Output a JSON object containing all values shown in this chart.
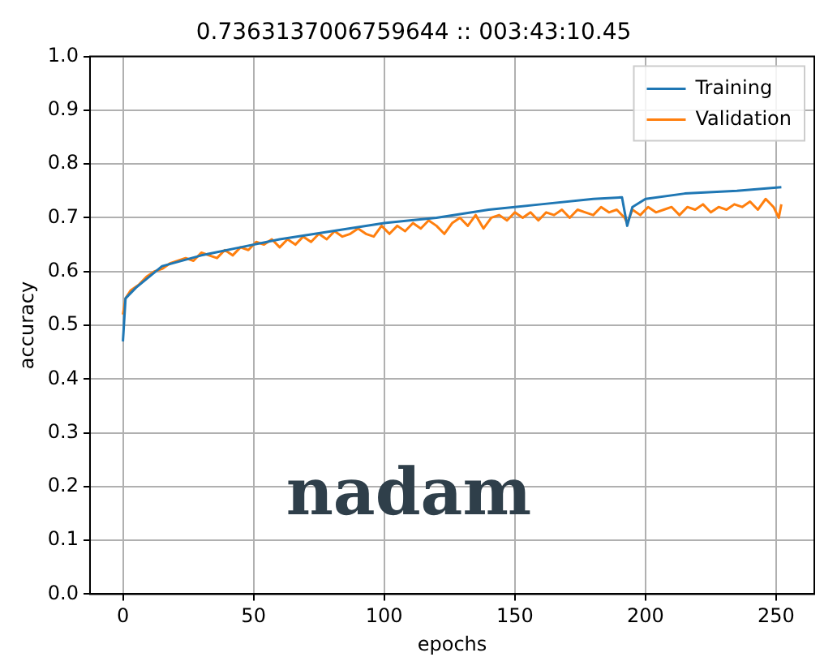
{
  "chart_data": {
    "type": "line",
    "title": "0.7363137006759644 :: 003:43:10.45",
    "xlabel": "epochs",
    "ylabel": "accuracy",
    "xlim": [
      -12.6,
      264.6
    ],
    "xticks": [
      0,
      50,
      100,
      150,
      200,
      250
    ],
    "ylim": [
      0,
      1
    ],
    "yticks": [
      {
        "value": 0,
        "label": "0.0"
      },
      0.1,
      0.2,
      0.3,
      0.4,
      0.5,
      0.6,
      0.7,
      0.8,
      0.9,
      {
        "value": 1,
        "label": "1.0"
      }
    ],
    "grid": true,
    "legend": "top right",
    "annotations": [
      "nadam"
    ],
    "series": [
      {
        "name": "Training",
        "color": "#1f77b4",
        "x": [
          0,
          1,
          5,
          15,
          30,
          45,
          60,
          80,
          100,
          120,
          140,
          160,
          180,
          191,
          193,
          195,
          200,
          215,
          235,
          252
        ],
        "values": [
          0.47,
          0.55,
          0.57,
          0.61,
          0.63,
          0.645,
          0.66,
          0.675,
          0.69,
          0.7,
          0.715,
          0.725,
          0.735,
          0.738,
          0.685,
          0.72,
          0.735,
          0.745,
          0.75,
          0.757
        ]
      },
      {
        "name": "Validation",
        "color": "#ff7f0e",
        "x": [
          0,
          1,
          3,
          6,
          9,
          12,
          15,
          18,
          21,
          24,
          27,
          30,
          33,
          36,
          39,
          42,
          45,
          48,
          51,
          54,
          57,
          60,
          63,
          66,
          69,
          72,
          75,
          78,
          81,
          84,
          87,
          90,
          93,
          96,
          99,
          102,
          105,
          108,
          111,
          114,
          117,
          120,
          123,
          126,
          129,
          132,
          135,
          138,
          141,
          144,
          147,
          150,
          153,
          156,
          159,
          162,
          165,
          168,
          171,
          174,
          177,
          180,
          183,
          186,
          189,
          192,
          193,
          195,
          198,
          201,
          204,
          207,
          210,
          213,
          216,
          219,
          222,
          225,
          228,
          231,
          234,
          237,
          240,
          243,
          246,
          249,
          251,
          252
        ],
        "values": [
          0.52,
          0.55,
          0.565,
          0.575,
          0.59,
          0.6,
          0.605,
          0.615,
          0.62,
          0.625,
          0.62,
          0.635,
          0.63,
          0.625,
          0.64,
          0.63,
          0.645,
          0.64,
          0.655,
          0.65,
          0.66,
          0.645,
          0.66,
          0.65,
          0.665,
          0.655,
          0.67,
          0.66,
          0.675,
          0.665,
          0.67,
          0.68,
          0.67,
          0.665,
          0.685,
          0.67,
          0.685,
          0.675,
          0.69,
          0.68,
          0.695,
          0.685,
          0.67,
          0.69,
          0.7,
          0.685,
          0.705,
          0.68,
          0.7,
          0.705,
          0.695,
          0.71,
          0.7,
          0.71,
          0.695,
          0.71,
          0.705,
          0.715,
          0.7,
          0.715,
          0.71,
          0.705,
          0.72,
          0.71,
          0.715,
          0.7,
          0.69,
          0.715,
          0.705,
          0.72,
          0.71,
          0.715,
          0.72,
          0.705,
          0.72,
          0.715,
          0.725,
          0.71,
          0.72,
          0.715,
          0.725,
          0.72,
          0.73,
          0.715,
          0.735,
          0.72,
          0.7,
          0.725
        ]
      }
    ]
  }
}
